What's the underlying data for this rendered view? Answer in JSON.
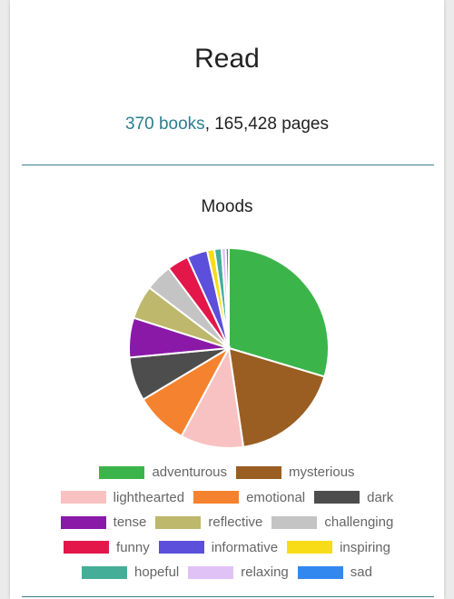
{
  "page": {
    "title": "Read",
    "books_link": "370 books",
    "pages_text": ", 165,428 pages"
  },
  "colors": {
    "link": "#2a7f8f",
    "divider": "#3a7f8f"
  },
  "chart_data": {
    "type": "pie",
    "title": "Moods",
    "legend_position": "bottom",
    "slices": [
      {
        "label": "adventurous",
        "value": 30.5,
        "color": "#3bb54a"
      },
      {
        "label": "mysterious",
        "value": 18.6,
        "color": "#9a5e22"
      },
      {
        "label": "lighthearted",
        "value": 10.5,
        "color": "#f9c2c2"
      },
      {
        "label": "emotional",
        "value": 8.8,
        "color": "#f5822e"
      },
      {
        "label": "dark",
        "value": 7.3,
        "color": "#4d4d4d"
      },
      {
        "label": "tense",
        "value": 6.6,
        "color": "#8a19a8"
      },
      {
        "label": "reflective",
        "value": 5.6,
        "color": "#bdb86b"
      },
      {
        "label": "challenging",
        "value": 4.5,
        "color": "#c4c4c4"
      },
      {
        "label": "funny",
        "value": 3.6,
        "color": "#e3174a"
      },
      {
        "label": "informative",
        "value": 3.4,
        "color": "#5b4fdc"
      },
      {
        "label": "inspiring",
        "value": 1.2,
        "color": "#f7dc17"
      },
      {
        "label": "hopeful",
        "value": 1.2,
        "color": "#44ae99"
      },
      {
        "label": "relaxing",
        "value": 0.7,
        "color": "#e0c2f7"
      },
      {
        "label": "sad",
        "value": 0.5,
        "color": "#3388f0"
      }
    ]
  }
}
